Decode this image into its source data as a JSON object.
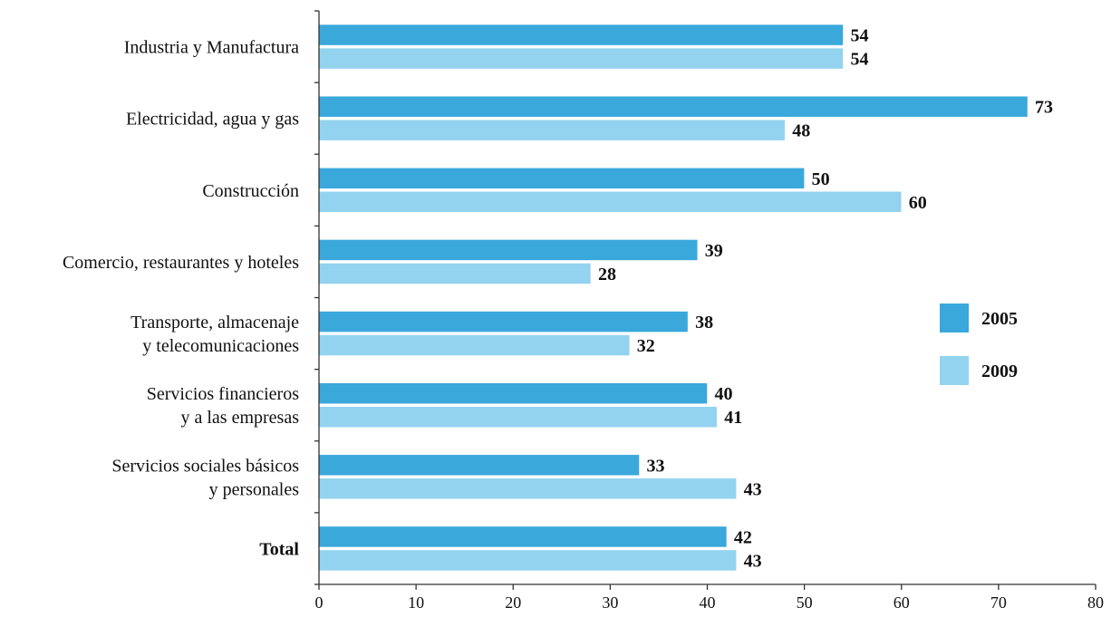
{
  "chart_data": {
    "type": "bar",
    "orientation": "horizontal",
    "categories": [
      [
        "Industria y Manufactura"
      ],
      [
        "Electricidad, agua y gas"
      ],
      [
        "Construcción"
      ],
      [
        "Comercio, restaurantes y hoteles"
      ],
      [
        "Transporte, almacenaje",
        "y telecomunicaciones"
      ],
      [
        "Servicios financieros",
        "y a las empresas"
      ],
      [
        "Servicios sociales básicos",
        "y personales"
      ],
      [
        "Total"
      ]
    ],
    "bold_categories": [
      "Total"
    ],
    "series": [
      {
        "name": "2005",
        "color": "#3aa8db",
        "values": [
          54,
          73,
          50,
          39,
          38,
          40,
          33,
          42
        ]
      },
      {
        "name": "2009",
        "color": "#93d3f0",
        "values": [
          54,
          48,
          60,
          28,
          32,
          41,
          43,
          43
        ]
      }
    ],
    "xlim": [
      0,
      80
    ],
    "xticks": [
      0,
      10,
      20,
      30,
      40,
      50,
      60,
      70,
      80
    ],
    "title": "",
    "xlabel": "",
    "ylabel": "",
    "grid": false,
    "data_labels": true,
    "legend": {
      "placement": "right"
    }
  }
}
